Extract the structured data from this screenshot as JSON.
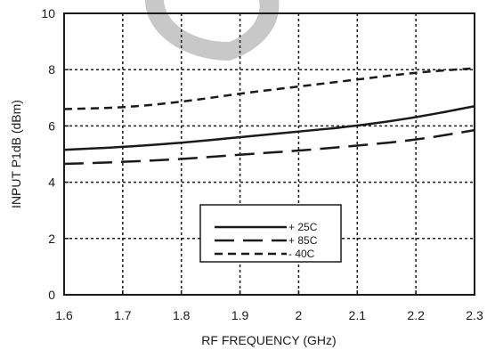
{
  "chart_data": {
    "type": "line",
    "title": "",
    "xlabel": "RF FREQUENCY (GHz)",
    "ylabel": "INPUT P1dB (dBm)",
    "xlim": [
      1.6,
      2.3
    ],
    "ylim": [
      0,
      10
    ],
    "xticks": [
      "1.6",
      "1.7",
      "1.8",
      "1.9",
      "2",
      "2.1",
      "2.2",
      "2.3"
    ],
    "yticks": [
      "0",
      "2",
      "4",
      "6",
      "8",
      "10"
    ],
    "grid": true,
    "legend_position": "bottom-center",
    "series": [
      {
        "name": "+ 25C",
        "dash": "solid",
        "x": [
          1.6,
          1.7,
          1.8,
          1.9,
          2.0,
          2.1,
          2.2,
          2.3
        ],
        "y": [
          5.15,
          5.25,
          5.4,
          5.6,
          5.8,
          6.0,
          6.3,
          6.7
        ]
      },
      {
        "name": "+ 85C",
        "dash": "long",
        "x": [
          1.6,
          1.7,
          1.8,
          1.9,
          2.0,
          2.1,
          2.2,
          2.3
        ],
        "y": [
          4.65,
          4.72,
          4.82,
          4.98,
          5.12,
          5.3,
          5.5,
          5.85
        ]
      },
      {
        "name": "- 40C",
        "dash": "short",
        "x": [
          1.6,
          1.7,
          1.8,
          1.9,
          2.0,
          2.1,
          2.2,
          2.3
        ],
        "y": [
          6.6,
          6.65,
          6.85,
          7.15,
          7.4,
          7.65,
          7.9,
          8.05
        ]
      }
    ]
  },
  "colors": {
    "line": "#1a1a1a",
    "grid": "#1a1a1a",
    "watermark": "#c8c8c8"
  }
}
